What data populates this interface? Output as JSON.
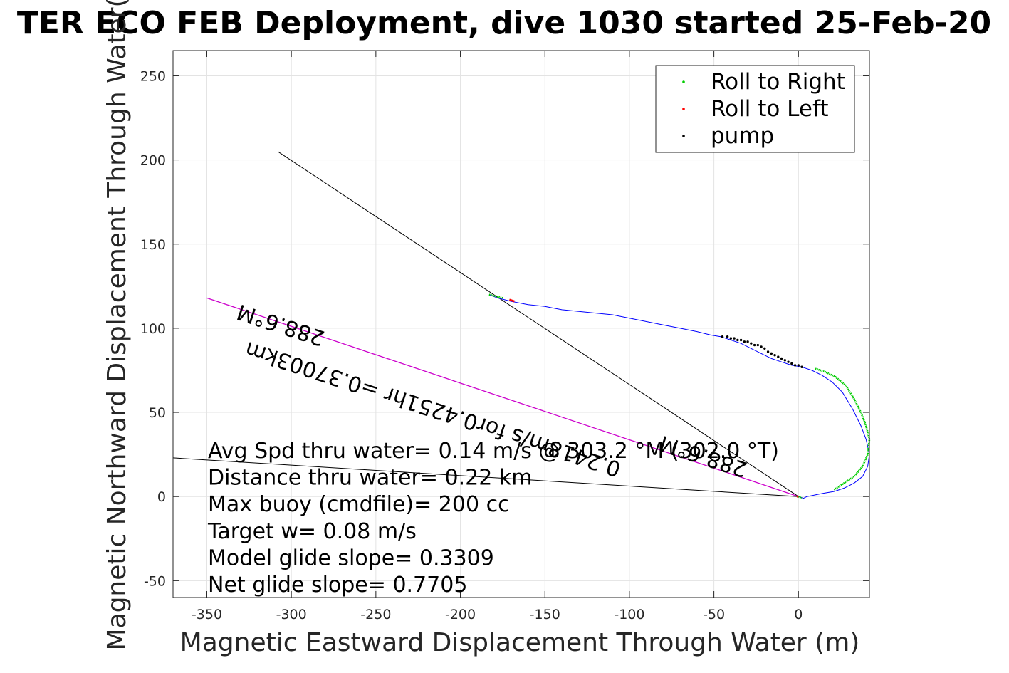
{
  "chart_data": {
    "type": "line",
    "title": "TER ECO FEB Deployment, dive 1030 started 25-Feb-20",
    "xlabel": "Magnetic Eastward Displacement Through Water (m)",
    "ylabel": "Magnetic Northward Displacement Through Water(",
    "xlim": [
      -370,
      42
    ],
    "ylim": [
      -60,
      265
    ],
    "xticks": [
      -350,
      -300,
      -250,
      -200,
      -150,
      -100,
      -50,
      0
    ],
    "yticks": [
      -50,
      0,
      50,
      100,
      150,
      200,
      250
    ],
    "grid": true,
    "legend_position": "top-right",
    "legend": [
      {
        "label": "Roll to Right",
        "color": "#00cc00"
      },
      {
        "label": "Roll to Left",
        "color": "#ff0000"
      },
      {
        "label": "pump",
        "color": "#000000"
      }
    ],
    "track": {
      "name": "track",
      "color": "#0000ff",
      "x": [
        -183,
        -178,
        -170,
        -160,
        -150,
        -140,
        -130,
        -120,
        -110,
        -100,
        -90,
        -80,
        -70,
        -60,
        -52,
        -46,
        -40,
        -34,
        -28,
        -22,
        -16,
        -10,
        -4,
        2,
        8,
        14,
        20,
        26,
        32,
        37,
        40,
        42,
        41,
        38,
        33,
        27,
        21,
        15,
        10,
        5,
        3,
        0
      ],
      "y": [
        120,
        118,
        116,
        114,
        113,
        111,
        110,
        109,
        108,
        106,
        104,
        102,
        100,
        98,
        96,
        95,
        93,
        91,
        88,
        85,
        82,
        80,
        78,
        77,
        75,
        72,
        68,
        62,
        52,
        42,
        34,
        25,
        18,
        12,
        8,
        5,
        3,
        2,
        1,
        0,
        -1,
        0
      ]
    },
    "roll_right_segments": [
      {
        "x": [
          -183,
          -175
        ],
        "y": [
          120,
          118
        ]
      },
      {
        "x": [
          10,
          16,
          22,
          28,
          33,
          37,
          40,
          42,
          41,
          38,
          33,
          27,
          21
        ],
        "y": [
          76,
          74,
          71,
          66,
          58,
          50,
          42,
          34,
          25,
          18,
          12,
          8,
          4
        ]
      },
      {
        "x": [
          0,
          2
        ],
        "y": [
          0,
          -1
        ]
      }
    ],
    "roll_left_segments": [
      {
        "x": [
          -171,
          -168
        ],
        "y": [
          117,
          116
        ]
      },
      {
        "x": [
          -1,
          0
        ],
        "y": [
          0,
          0
        ]
      }
    ],
    "pump_points": {
      "x": [
        -45,
        -42,
        -40,
        -38,
        -36,
        -34,
        -32,
        -30,
        -28,
        -26,
        -24,
        -22,
        -20,
        -18,
        -16,
        -14,
        -12,
        -10,
        -8,
        -6,
        -4,
        -2,
        0,
        2
      ],
      "y": [
        95,
        95,
        94,
        94,
        93,
        93,
        92,
        92,
        91,
        90,
        90,
        89,
        88,
        86,
        85,
        84,
        83,
        82,
        81,
        80,
        79,
        78,
        78,
        77
      ]
    },
    "black_lines": [
      {
        "x": [
          -308,
          0
        ],
        "y": [
          205,
          0
        ]
      },
      {
        "x": [
          -370,
          0
        ],
        "y": [
          23,
          0
        ]
      }
    ],
    "magenta_line": {
      "x": [
        -350,
        0
      ],
      "y": [
        118,
        0
      ],
      "color": "#cc00cc"
    },
    "annotations": [
      {
        "text": "288.6°M",
        "x": -305,
        "y": 106,
        "rotation": 198
      },
      {
        "text": "0.2418m/s for0.4251hr =0.37003km",
        "x": -215,
        "y": 56,
        "rotation": 198
      },
      {
        "text": "288.6°M",
        "x": -55,
        "y": 28,
        "rotation": 198
      }
    ],
    "info_lines": [
      "Avg Spd thru water=  0.14 m/s @ 303.2 °M (302.0 °T)",
      "Distance thru water=  0.22 km",
      "Max buoy (cmdfile)= 200 cc",
      "Target w= 0.08 m/s",
      "Model glide slope= 0.3309",
      "Net glide slope= 0.7705"
    ]
  }
}
